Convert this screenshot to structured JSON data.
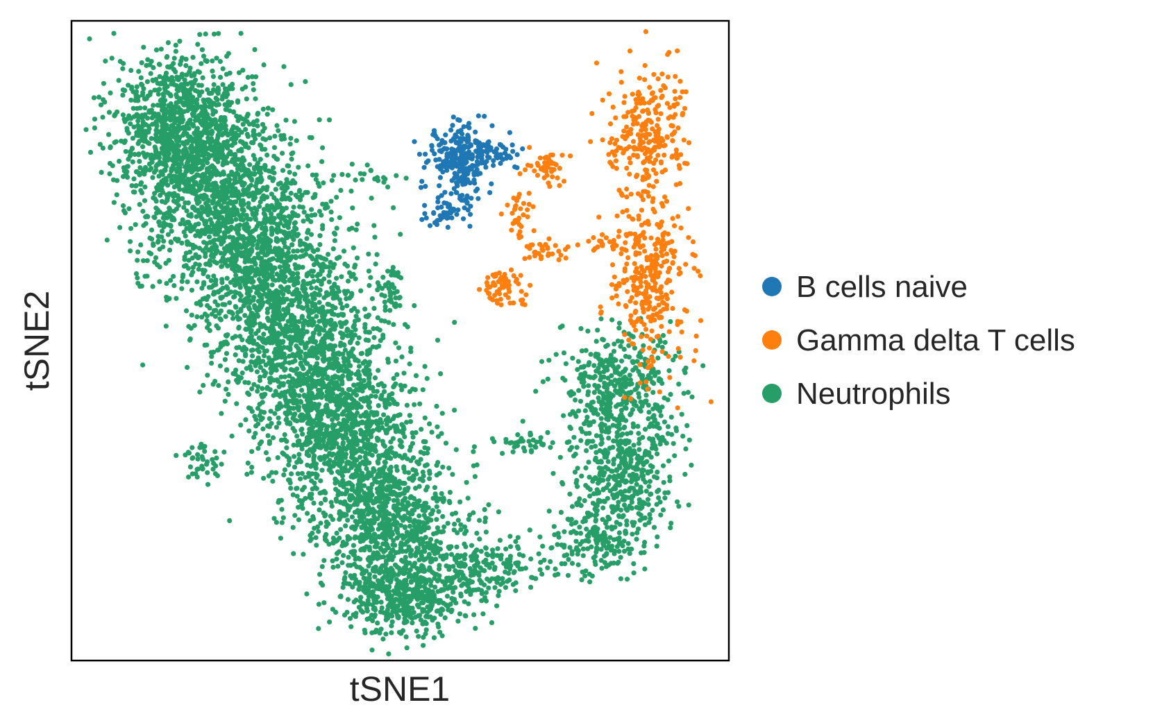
{
  "chart_data": {
    "type": "scatter",
    "xlabel": "tSNE1",
    "ylabel": "tSNE2",
    "xlim": [
      0,
      100
    ],
    "ylim": [
      0,
      100
    ],
    "ticks": "none",
    "grid": false,
    "legend_placement": "right",
    "series": [
      {
        "name": "B cells naive",
        "color": "#1f77b4",
        "clusters": [
          {
            "cx": 59.0,
            "cy": 78.5,
            "sx": 2.4,
            "sy": 2.6,
            "n": 230
          },
          {
            "cx": 64.0,
            "cy": 79.5,
            "sx": 2.2,
            "sy": 1.2,
            "n": 60
          },
          {
            "cx": 58.5,
            "cy": 71.0,
            "sx": 1.3,
            "sy": 2.0,
            "n": 40
          },
          {
            "cx": 56.0,
            "cy": 69.5,
            "sx": 1.0,
            "sy": 0.8,
            "n": 20
          }
        ]
      },
      {
        "name": "Gamma delta T cells",
        "color": "#ff7f0e",
        "clusters": [
          {
            "cx": 87.5,
            "cy": 82.5,
            "sx": 3.2,
            "sy": 5.2,
            "n": 260
          },
          {
            "cx": 88.0,
            "cy": 59.0,
            "sx": 3.0,
            "sy": 6.2,
            "n": 320
          },
          {
            "cx": 72.5,
            "cy": 77.0,
            "sx": 1.2,
            "sy": 1.5,
            "n": 45
          },
          {
            "cx": 68.0,
            "cy": 69.0,
            "sx": 1.1,
            "sy": 2.8,
            "n": 35
          },
          {
            "cx": 72.5,
            "cy": 64.0,
            "sx": 2.0,
            "sy": 0.8,
            "n": 30
          },
          {
            "cx": 66.0,
            "cy": 58.5,
            "sx": 2.2,
            "sy": 1.5,
            "n": 60
          },
          {
            "cx": 81.5,
            "cy": 65.0,
            "sx": 2.0,
            "sy": 0.8,
            "n": 20
          }
        ]
      },
      {
        "name": "Neutrophils",
        "color": "#279e68",
        "clusters": [
          {
            "cx": 17.0,
            "cy": 84.0,
            "sx": 5.5,
            "sy": 6.0,
            "n": 900
          },
          {
            "cx": 22.0,
            "cy": 73.0,
            "sx": 6.5,
            "sy": 6.5,
            "n": 900
          },
          {
            "cx": 29.0,
            "cy": 61.0,
            "sx": 6.5,
            "sy": 7.0,
            "n": 950
          },
          {
            "cx": 36.0,
            "cy": 48.0,
            "sx": 6.0,
            "sy": 7.0,
            "n": 950
          },
          {
            "cx": 42.0,
            "cy": 35.0,
            "sx": 6.0,
            "sy": 6.5,
            "n": 850
          },
          {
            "cx": 48.0,
            "cy": 22.0,
            "sx": 5.5,
            "sy": 5.0,
            "n": 750
          },
          {
            "cx": 50.0,
            "cy": 10.0,
            "sx": 4.5,
            "sy": 3.0,
            "n": 450
          },
          {
            "cx": 61.0,
            "cy": 14.0,
            "sx": 5.5,
            "sy": 2.2,
            "n": 250
          },
          {
            "cx": 83.5,
            "cy": 42.0,
            "sx": 4.5,
            "sy": 5.0,
            "n": 450
          },
          {
            "cx": 84.0,
            "cy": 28.0,
            "sx": 4.0,
            "sy": 5.0,
            "n": 380
          },
          {
            "cx": 79.0,
            "cy": 18.0,
            "sx": 3.5,
            "sy": 3.0,
            "n": 160
          },
          {
            "cx": 69.0,
            "cy": 34.0,
            "sx": 2.5,
            "sy": 1.0,
            "n": 40
          },
          {
            "cx": 48.5,
            "cy": 58.0,
            "sx": 1.2,
            "sy": 2.0,
            "n": 40
          },
          {
            "cx": 20.0,
            "cy": 31.0,
            "sx": 1.5,
            "sy": 1.5,
            "n": 40
          },
          {
            "cx": 45.0,
            "cy": 76.0,
            "sx": 2.5,
            "sy": 1.0,
            "n": 20
          }
        ]
      }
    ]
  }
}
